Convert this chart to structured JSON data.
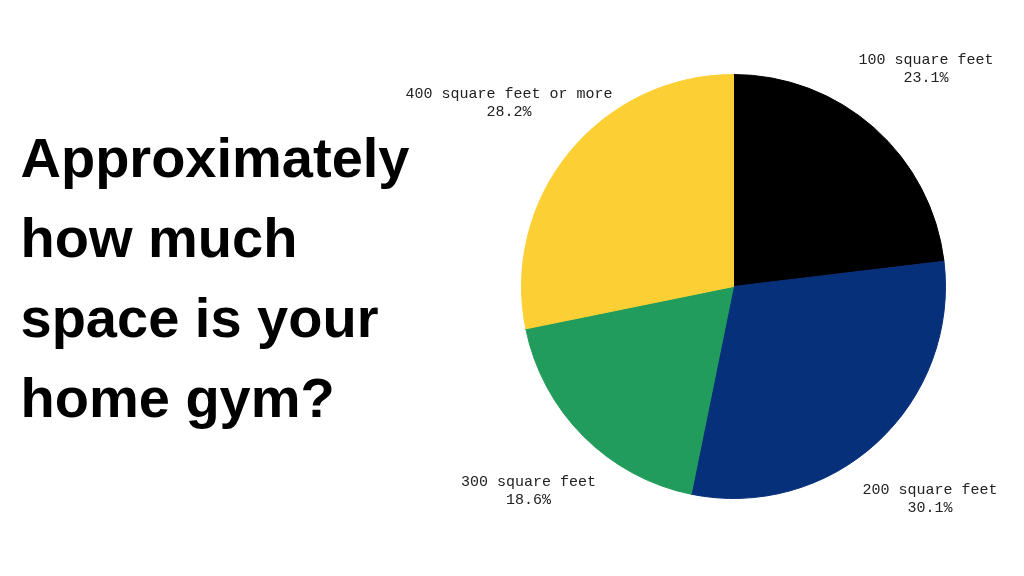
{
  "chart_data": {
    "type": "pie",
    "title": "Approximately how much space is your home gym?",
    "categories": [
      "100 square feet",
      "200 square feet",
      "300 square feet",
      "400 square feet or more"
    ],
    "values": [
      23.1,
      30.1,
      18.6,
      28.2
    ],
    "colors": [
      "#000000",
      "#07307a",
      "#229c5c",
      "#fcd035"
    ],
    "value_labels": [
      "23.1%",
      "30.1%",
      "18.6%",
      "28.2%"
    ],
    "legend": false
  }
}
